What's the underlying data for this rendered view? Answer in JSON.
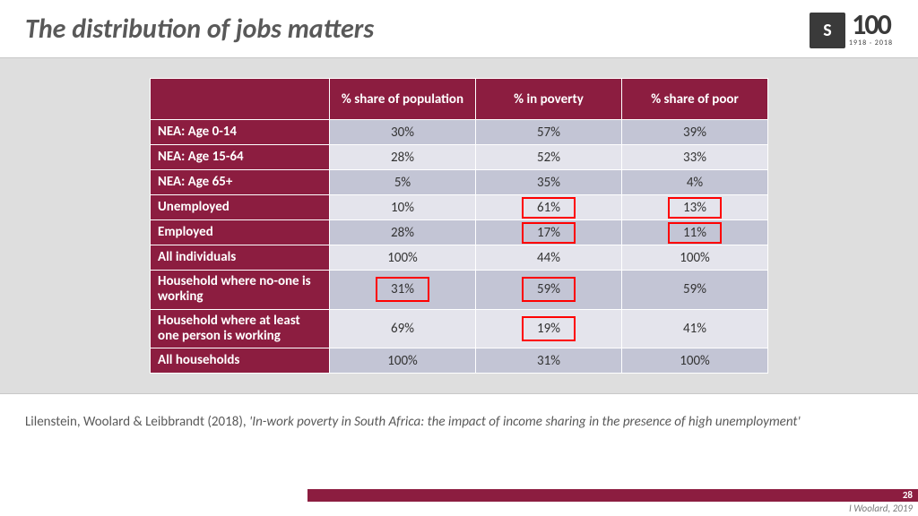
{
  "title": "The distribution of jobs matters",
  "logo": {
    "num": "100",
    "years": "1918 · 2018",
    "mark": "S"
  },
  "table": {
    "columns": [
      "% share of population",
      "% in poverty",
      "% share of poor"
    ],
    "rows": [
      {
        "label": "NEA: Age 0-14",
        "vals": [
          "30%",
          "57%",
          "39%"
        ],
        "band": "dark",
        "hl": []
      },
      {
        "label": "NEA: Age 15-64",
        "vals": [
          "28%",
          "52%",
          "33%"
        ],
        "band": "light",
        "hl": []
      },
      {
        "label": "NEA: Age 65+",
        "vals": [
          "5%",
          "35%",
          "4%"
        ],
        "band": "dark",
        "hl": []
      },
      {
        "label": "Unemployed",
        "vals": [
          "10%",
          "61%",
          "13%"
        ],
        "band": "light",
        "hl": [
          1,
          2
        ]
      },
      {
        "label": "Employed",
        "vals": [
          "28%",
          "17%",
          "11%"
        ],
        "band": "dark",
        "hl": [
          1,
          2
        ]
      },
      {
        "label": "All individuals",
        "vals": [
          "100%",
          "44%",
          "100%"
        ],
        "band": "light",
        "hl": []
      },
      {
        "label": "Household where no-one is working",
        "vals": [
          "31%",
          "59%",
          "59%"
        ],
        "band": "dark",
        "hl": [
          0,
          1
        ],
        "tall": true
      },
      {
        "label": "Household where at least one person is working",
        "vals": [
          "69%",
          "19%",
          "41%"
        ],
        "band": "light",
        "hl": [
          1
        ],
        "tall": true
      },
      {
        "label": "All households",
        "vals": [
          "100%",
          "31%",
          "100%"
        ],
        "band": "dark",
        "hl": []
      }
    ],
    "highlight_box": {
      "color": "#ff0000",
      "width": 2.5,
      "w": 60,
      "h": 24,
      "w_tall": 60,
      "h_tall": 28
    }
  },
  "citation": {
    "lead": "Lilenstein, Woolard & Leibbrandt (2018),  ",
    "title": "'In-work poverty in South Africa: the impact of income sharing in the presence of high unemployment'"
  },
  "footer": {
    "page": "28",
    "credit": "I Woolard, 2019"
  },
  "palette": {
    "maroon": "#8c1d40",
    "grey_bg": "#dedede",
    "band_dark": "#c3c5d5",
    "band_light": "#e4e4ec",
    "title_grey": "#595959"
  }
}
